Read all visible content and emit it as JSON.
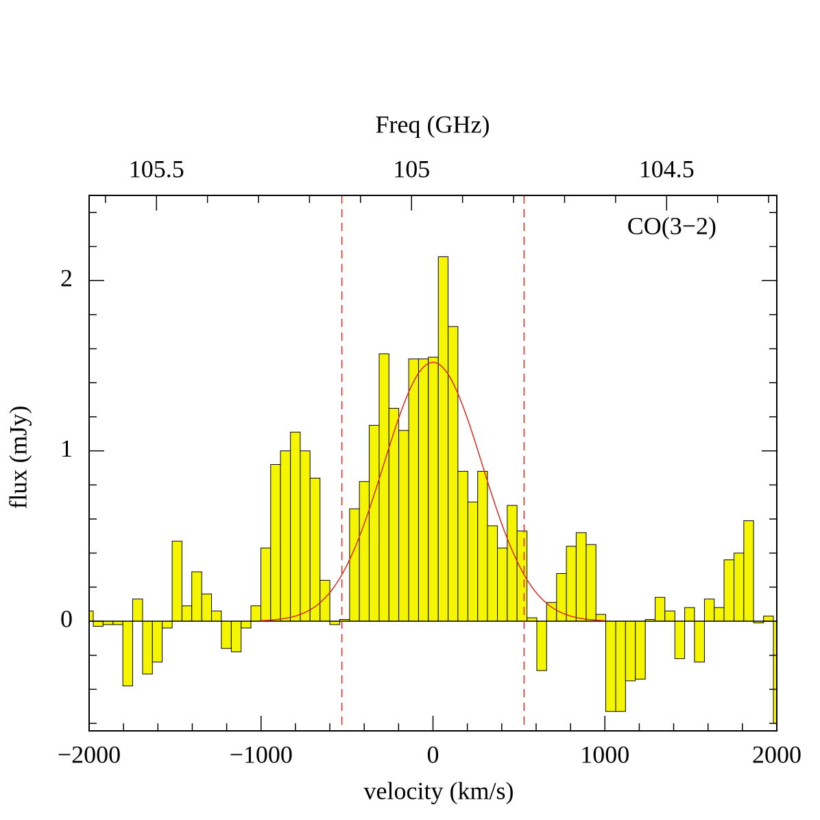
{
  "chart_data": {
    "type": "histogram",
    "xlabel": "velocity (km/s)",
    "ylabel": "flux (mJy)",
    "annotation": "CO(3−2)",
    "color": "#f5f500",
    "xlim": [
      -2000,
      2000
    ],
    "ylim": [
      -0.644,
      2.5
    ],
    "xticks": [
      {
        "value": -2000,
        "label": "−2000"
      },
      {
        "value": -1000,
        "label": "−1000"
      },
      0,
      1000,
      2000
    ],
    "xminorticks": [
      -1800,
      -1600,
      -1400,
      -1200,
      -800,
      -600,
      -400,
      -200,
      200,
      400,
      600,
      800,
      1200,
      1400,
      1600,
      1800
    ],
    "yticks": [
      0,
      1,
      2
    ],
    "yminorticks": [
      -0.6,
      -0.4,
      -0.2,
      0.2,
      0.4,
      0.6,
      0.8,
      1.2,
      1.4,
      1.6,
      1.8,
      2.2,
      2.4
    ],
    "top_axis": {
      "label": "Freq (GHz)",
      "xlim": [
        105.632,
        104.284
      ],
      "xticks": [
        105.5,
        105,
        104.5
      ],
      "xminorticks": [
        105.6,
        105.4,
        105.3,
        105.2,
        105.1,
        104.9,
        104.8,
        104.7,
        104.6,
        104.4,
        104.3
      ]
    },
    "bins": [
      -2000,
      -1976,
      -1919,
      -1861,
      -1804,
      -1747,
      -1689,
      -1632,
      -1575,
      -1517,
      -1460,
      -1403,
      -1345,
      -1288,
      -1231,
      -1173,
      -1116,
      -1059,
      -1001,
      -944,
      -887,
      -829,
      -772,
      -715,
      -657,
      -600,
      -543,
      -485,
      -428,
      -371,
      -313,
      -256,
      -199,
      -141,
      -84,
      -27,
      31,
      88,
      145,
      203,
      260,
      317,
      375,
      432,
      489,
      547,
      604,
      661,
      719,
      776,
      833,
      891,
      948,
      1005,
      1063,
      1120,
      1177,
      1235,
      1292,
      1349,
      1407,
      1464,
      1521,
      1579,
      1636,
      1693,
      1751,
      1808,
      1865,
      1923,
      1980,
      2000
    ],
    "values": [
      0.06,
      -0.03,
      -0.02,
      -0.02,
      -0.38,
      0.13,
      -0.31,
      -0.24,
      -0.04,
      0.47,
      0.09,
      0.29,
      0.16,
      0.06,
      -0.16,
      -0.18,
      -0.04,
      0.09,
      0.43,
      0.92,
      1.0,
      1.11,
      1.0,
      0.84,
      0.24,
      -0.02,
      0.01,
      0.66,
      0.82,
      1.15,
      1.57,
      1.25,
      1.12,
      1.54,
      1.54,
      1.55,
      2.14,
      1.73,
      0.88,
      0.7,
      0.88,
      0.56,
      0.43,
      0.68,
      0.53,
      0.02,
      -0.29,
      0.11,
      0.28,
      0.44,
      0.52,
      0.45,
      0.04,
      -0.53,
      -0.53,
      -0.35,
      -0.34,
      0.01,
      0.14,
      0.06,
      -0.22,
      0.08,
      -0.24,
      0.13,
      0.08,
      0.36,
      0.4,
      0.59,
      -0.01,
      0.03,
      -0.6
    ],
    "fit": {
      "color": "#d62a1e",
      "amplitude": 1.52,
      "center": 0,
      "sigma": 286,
      "xrange": [
        -1000,
        1000
      ]
    },
    "vlines": {
      "color": "#d62a1e",
      "x": [
        -530,
        530
      ]
    }
  }
}
